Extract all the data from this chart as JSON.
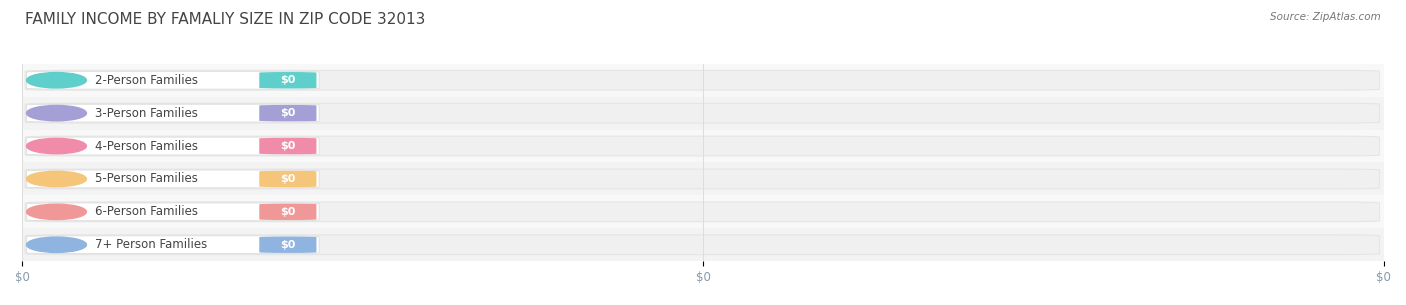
{
  "title": "FAMILY INCOME BY FAMALIY SIZE IN ZIP CODE 32013",
  "source": "Source: ZipAtlas.com",
  "categories": [
    "2-Person Families",
    "3-Person Families",
    "4-Person Families",
    "5-Person Families",
    "6-Person Families",
    "7+ Person Families"
  ],
  "values": [
    0,
    0,
    0,
    0,
    0,
    0
  ],
  "bar_colors": [
    "#5ecfca",
    "#a49fd4",
    "#f08caa",
    "#f5c57a",
    "#f09898",
    "#90b4e0"
  ],
  "pill_bg_color": "#ffffff",
  "pill_edge_color": "#dddddd",
  "track_color": "#f0f0f0",
  "track_edge_color": "#e5e5e5",
  "value_labels": [
    "$0",
    "$0",
    "$0",
    "$0",
    "$0",
    "$0"
  ],
  "xtick_labels": [
    "$0",
    "$0",
    "$0"
  ],
  "xtick_positions": [
    0.0,
    0.5,
    1.0
  ],
  "xlim": [
    0,
    1
  ],
  "background_color": "#ffffff",
  "title_fontsize": 11,
  "label_fontsize": 8.5,
  "value_fontsize": 8,
  "source_fontsize": 7.5,
  "title_color": "#444444",
  "label_color": "#444444",
  "tick_color": "#8899aa",
  "source_color": "#777777"
}
